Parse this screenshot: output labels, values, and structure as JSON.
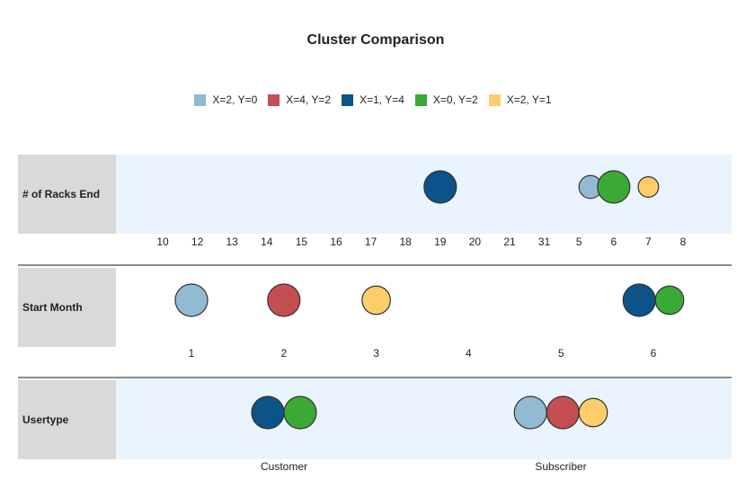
{
  "chart_data": {
    "type": "scatter",
    "title": "Cluster Comparison",
    "legend": [
      {
        "label": "X=2, Y=0",
        "color": "#92bad2"
      },
      {
        "label": "X=4, Y=2",
        "color": "#c44e52"
      },
      {
        "label": "X=1, Y=4",
        "color": "#0b5388"
      },
      {
        "label": "X=0, Y=2",
        "color": "#3aaa35"
      },
      {
        "label": "X=2, Y=1",
        "color": "#fdcd6a"
      }
    ],
    "rows": [
      {
        "label": "# of Racks End",
        "ticks": [
          "10",
          "12",
          "13",
          "14",
          "15",
          "16",
          "17",
          "18",
          "19",
          "20",
          "21",
          "31",
          "5",
          "6",
          "7",
          "8"
        ],
        "points": [
          {
            "series": 2,
            "category": "19",
            "size": 3
          },
          {
            "series": 0,
            "category": "5",
            "size": 1.5
          },
          {
            "series": 1,
            "category": "5",
            "size": 1.5
          },
          {
            "series": 3,
            "category": "6",
            "size": 3
          },
          {
            "series": 4,
            "category": "7",
            "size": 1.2
          }
        ]
      },
      {
        "label": "Start Month",
        "ticks": [
          "1",
          "2",
          "3",
          "4",
          "5",
          "6"
        ],
        "points": [
          {
            "series": 0,
            "category": "1",
            "size": 3
          },
          {
            "series": 1,
            "category": "2",
            "size": 3
          },
          {
            "series": 4,
            "category": "3",
            "size": 2.3
          },
          {
            "series": 2,
            "category": "6",
            "size": 3
          },
          {
            "series": 3,
            "category": "6",
            "size": 2.3
          }
        ]
      },
      {
        "label": "Usertype",
        "ticks": [
          "Customer",
          "Subscriber"
        ],
        "points": [
          {
            "series": 2,
            "category": "Customer",
            "size": 3
          },
          {
            "series": 3,
            "category": "Customer",
            "size": 3
          },
          {
            "series": 0,
            "category": "Subscriber",
            "size": 3
          },
          {
            "series": 1,
            "category": "Subscriber",
            "size": 3
          },
          {
            "series": 4,
            "category": "Subscriber",
            "size": 2.3
          }
        ]
      }
    ]
  }
}
